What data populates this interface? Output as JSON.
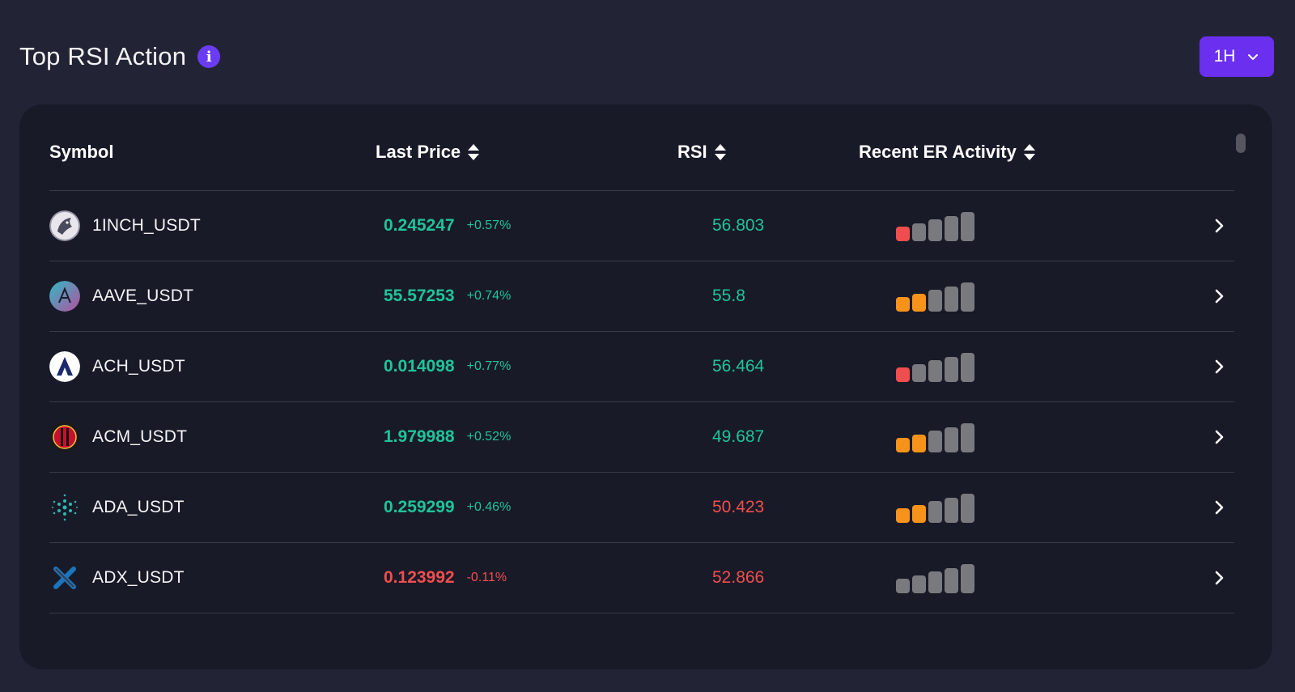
{
  "header": {
    "title": "Top RSI Action",
    "timeframe": "1H"
  },
  "table": {
    "columns": [
      "Symbol",
      "Last Price",
      "RSI",
      "Recent ER Activity"
    ],
    "rows": [
      {
        "symbol": "1INCH_USDT",
        "price": "0.245247",
        "change": "+0.57%",
        "rsi": "56.803",
        "price_dir": "up",
        "rsi_dir": "up",
        "activity": [
          "red",
          "gray",
          "gray",
          "gray",
          "gray"
        ],
        "icon": "1inch-unicorn-icon"
      },
      {
        "symbol": "AAVE_USDT",
        "price": "55.57253",
        "change": "+0.74%",
        "rsi": "55.8",
        "price_dir": "up",
        "rsi_dir": "up",
        "activity": [
          "orange",
          "orange",
          "gray",
          "gray",
          "gray"
        ],
        "icon": "aave-icon"
      },
      {
        "symbol": "ACH_USDT",
        "price": "0.014098",
        "change": "+0.77%",
        "rsi": "56.464",
        "price_dir": "up",
        "rsi_dir": "up",
        "activity": [
          "red",
          "gray",
          "gray",
          "gray",
          "gray"
        ],
        "icon": "alchemy-pay-icon"
      },
      {
        "symbol": "ACM_USDT",
        "price": "1.979988",
        "change": "+0.52%",
        "rsi": "49.687",
        "price_dir": "up",
        "rsi_dir": "up",
        "activity": [
          "orange",
          "orange",
          "gray",
          "gray",
          "gray"
        ],
        "icon": "ac-milan-icon"
      },
      {
        "symbol": "ADA_USDT",
        "price": "0.259299",
        "change": "+0.46%",
        "rsi": "50.423",
        "price_dir": "up",
        "rsi_dir": "down",
        "activity": [
          "orange",
          "orange",
          "gray",
          "gray",
          "gray"
        ],
        "icon": "cardano-icon"
      },
      {
        "symbol": "ADX_USDT",
        "price": "0.123992",
        "change": "-0.11%",
        "rsi": "52.866",
        "price_dir": "down",
        "rsi_dir": "down",
        "activity": [
          "gray",
          "gray",
          "gray",
          "gray",
          "gray"
        ],
        "icon": "adex-icon"
      }
    ]
  },
  "colors": {
    "green": "#1fc49a",
    "red": "#f04e4e",
    "orange": "#f7931a",
    "gray": "#7a7a7e",
    "accent": "#6b2ff0"
  }
}
